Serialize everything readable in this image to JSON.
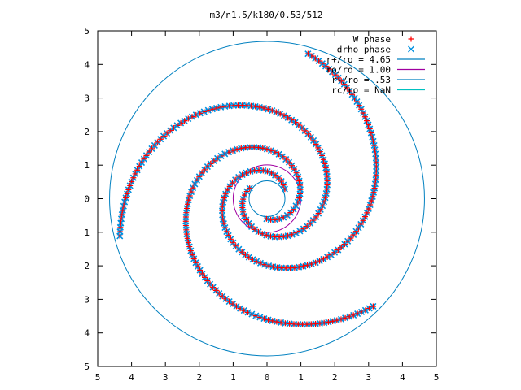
{
  "chart_data": {
    "type": "scatter",
    "title": "m3/n1.5/k180/0.53/512",
    "xlabel": "",
    "ylabel": "",
    "xlim": [
      -5,
      5
    ],
    "ylim": [
      -5,
      5
    ],
    "x_tick_labels": [
      "5",
      "4",
      "3",
      "2",
      "1",
      "0",
      "1",
      "2",
      "3",
      "4",
      "5"
    ],
    "y_tick_labels": [
      "5",
      "4",
      "3",
      "2",
      "1",
      "0",
      "1",
      "2",
      "3",
      "4",
      "5"
    ],
    "grid": false,
    "legend_position": "top-right",
    "spiral_arms": 3,
    "arm_range_r": [
      0.6,
      4.5
    ],
    "series": [
      {
        "name": "W phase",
        "marker": "plus",
        "color": "#ff0000"
      },
      {
        "name": "drho phase",
        "marker": "cross",
        "color": "#0090e0"
      }
    ],
    "circles": [
      {
        "label": "r+/ro = 4.65",
        "radius": 4.65,
        "color": "#0080c0"
      },
      {
        "label": "ro/ro = 1.00",
        "radius": 1.0,
        "color": "#a000a0"
      },
      {
        "label": "r-/ro = .53",
        "radius": 0.53,
        "color": "#0080c0"
      },
      {
        "label": "rc/ro = NaN",
        "radius": null,
        "color": "#00c0c0"
      }
    ]
  }
}
